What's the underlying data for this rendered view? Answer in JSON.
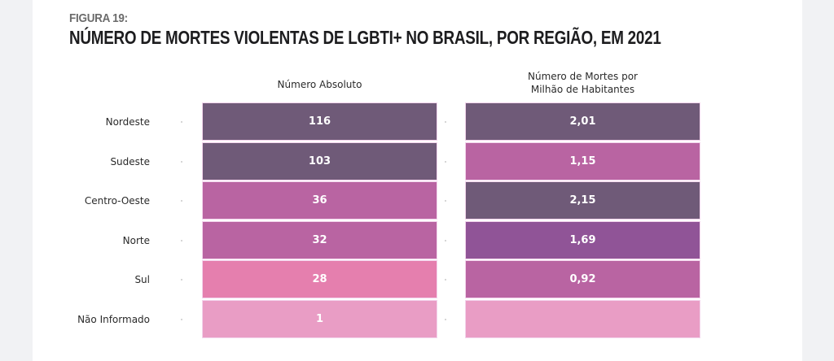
{
  "figure": {
    "label": "FIGURA 19:",
    "title": "NÚMERO DE MORTES VIOLENTAS DE LGBTI+ NO BRASIL, POR REGIÃO, EM 2021"
  },
  "colors": {
    "dark_purple": "#6f5a78",
    "mauve": "#b964a2",
    "violet": "#905497",
    "pink": "#e57fae",
    "light_pink": "#e99dc5",
    "page_bg": "#f1f2f4",
    "card_bg": "#ffffff"
  },
  "chart_data": {
    "type": "table",
    "title": "NÚMERO DE MORTES VIOLENTAS DE LGBTI+ NO BRASIL, POR REGIÃO, EM 2021",
    "subtitle": "FIGURA 19:",
    "rows": [
      "Nordeste",
      "Sudeste",
      "Centro-Oeste",
      "Norte",
      "Sul",
      "Não Informado"
    ],
    "columns": [
      {
        "header": [
          "Número Absoluto"
        ],
        "values": [
          "116",
          "103",
          "36",
          "32",
          "28",
          "1"
        ],
        "numeric": [
          116,
          103,
          36,
          32,
          28,
          1
        ],
        "cell_colors": [
          "#6f5a78",
          "#6f5a78",
          "#b964a2",
          "#b964a2",
          "#e57fae",
          "#e99dc5"
        ]
      },
      {
        "header": [
          "Número de Mortes por",
          "Milhão de Habitantes"
        ],
        "values": [
          "2,01",
          "1,15",
          "2,15",
          "1,69",
          "0,92",
          ""
        ],
        "numeric": [
          2.01,
          1.15,
          2.15,
          1.69,
          0.92,
          null
        ],
        "cell_colors": [
          "#6f5a78",
          "#b964a2",
          "#6f5a78",
          "#905497",
          "#b964a2",
          "#e99dc5"
        ]
      }
    ]
  }
}
